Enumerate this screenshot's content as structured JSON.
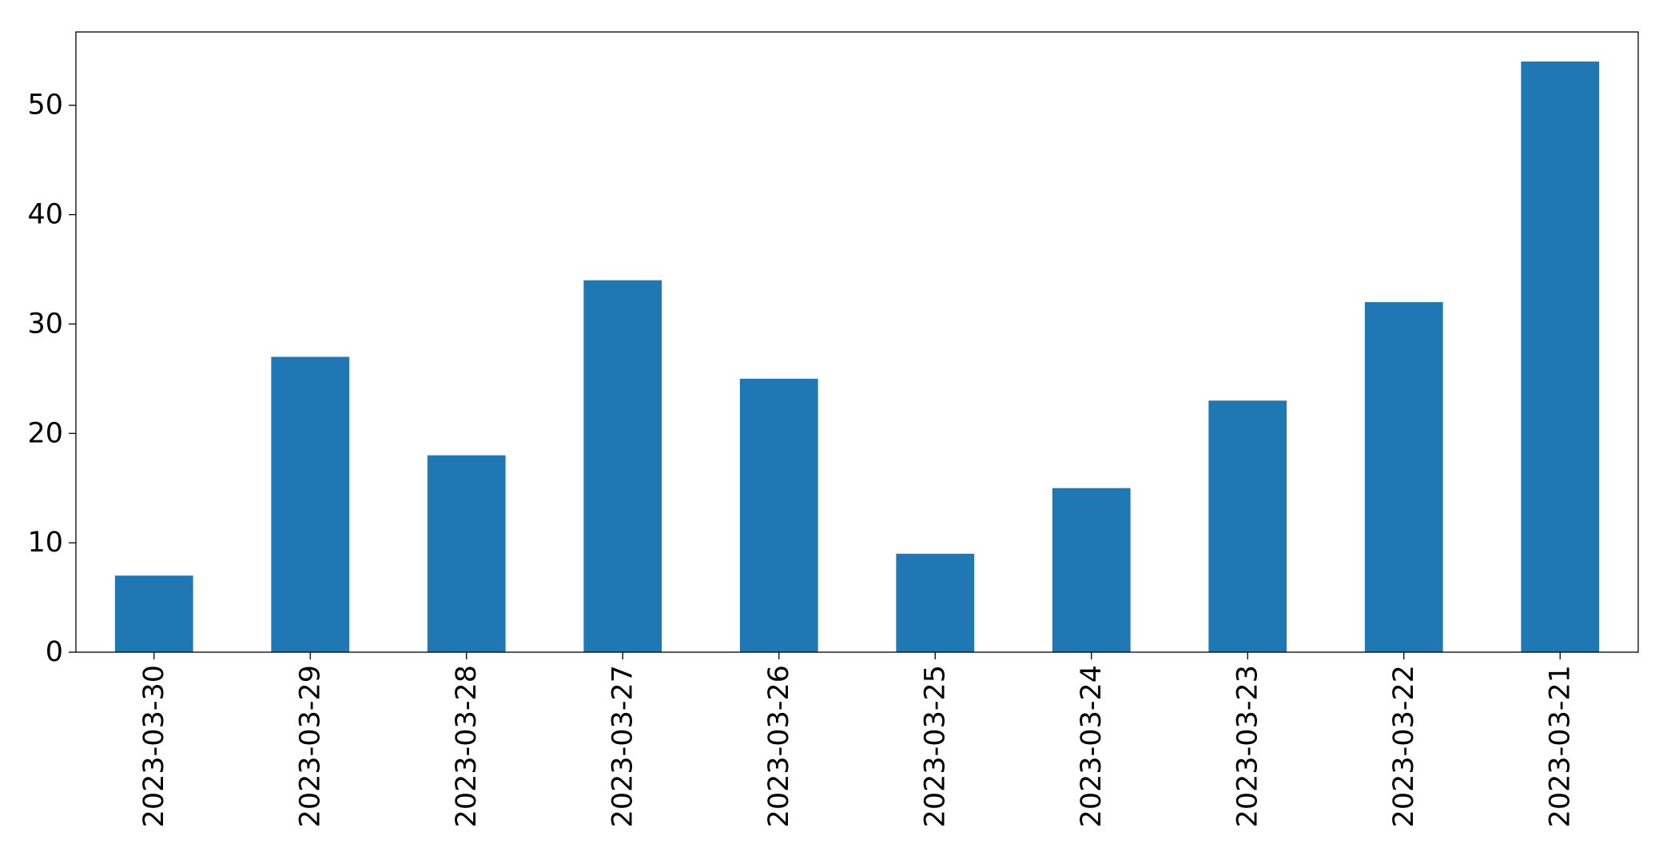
{
  "chart_data": {
    "type": "bar",
    "categories": [
      "2023-03-30",
      "2023-03-29",
      "2023-03-28",
      "2023-03-27",
      "2023-03-26",
      "2023-03-25",
      "2023-03-24",
      "2023-03-23",
      "2023-03-22",
      "2023-03-21"
    ],
    "values": [
      7,
      27,
      18,
      34,
      25,
      9,
      15,
      23,
      32,
      54
    ],
    "color": "#1f77b4",
    "ylim": [
      0,
      56.7
    ],
    "yticks": [
      0,
      10,
      20,
      30,
      40,
      50
    ],
    "grid": false
  }
}
